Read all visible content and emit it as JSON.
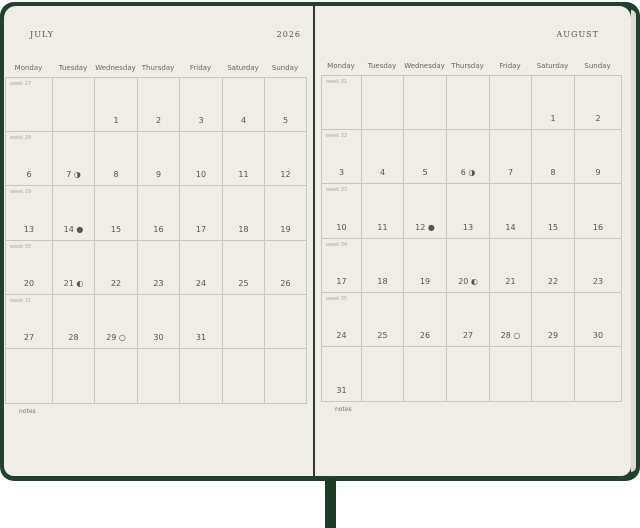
{
  "year": "2026",
  "weekdays": [
    "Monday",
    "Tuesday",
    "Wednesday",
    "Thursday",
    "Friday",
    "Saturday",
    "Sunday"
  ],
  "notes_label": "notes",
  "colors": {
    "cover": "#23402c",
    "paper": "#efede6",
    "grid": "#c8c6c0"
  },
  "months": [
    {
      "name": "JULY",
      "weeks": [
        {
          "label": "week 27",
          "days": [
            "",
            "",
            "1",
            "2",
            "3",
            "4",
            "5"
          ]
        },
        {
          "label": "week 28",
          "days": [
            "6",
            "7 ◑",
            "8",
            "9",
            "10",
            "11",
            "12"
          ]
        },
        {
          "label": "week 29",
          "days": [
            "13",
            "14 ●",
            "15",
            "16",
            "17",
            "18",
            "19"
          ]
        },
        {
          "label": "week 30",
          "days": [
            "20",
            "21 ◐",
            "22",
            "23",
            "24",
            "25",
            "26"
          ]
        },
        {
          "label": "week 31",
          "days": [
            "27",
            "28",
            "29 ○",
            "30",
            "31",
            "",
            ""
          ]
        },
        {
          "label": "",
          "days": [
            "",
            "",
            "",
            "",
            "",
            "",
            ""
          ]
        }
      ]
    },
    {
      "name": "AUGUST",
      "weeks": [
        {
          "label": "week 31",
          "days": [
            "",
            "",
            "",
            "",
            "",
            "1",
            "2"
          ]
        },
        {
          "label": "week 32",
          "days": [
            "3",
            "4",
            "5",
            "6 ◑",
            "7",
            "8",
            "9"
          ]
        },
        {
          "label": "week 33",
          "days": [
            "10",
            "11",
            "12 ●",
            "13",
            "14",
            "15",
            "16"
          ]
        },
        {
          "label": "week 34",
          "days": [
            "17",
            "18",
            "19",
            "20 ◐",
            "21",
            "22",
            "23"
          ]
        },
        {
          "label": "week 35",
          "days": [
            "24",
            "25",
            "26",
            "27",
            "28 ○",
            "29",
            "30"
          ]
        },
        {
          "label": "",
          "days": [
            "31",
            "",
            "",
            "",
            "",
            "",
            ""
          ]
        }
      ]
    }
  ]
}
